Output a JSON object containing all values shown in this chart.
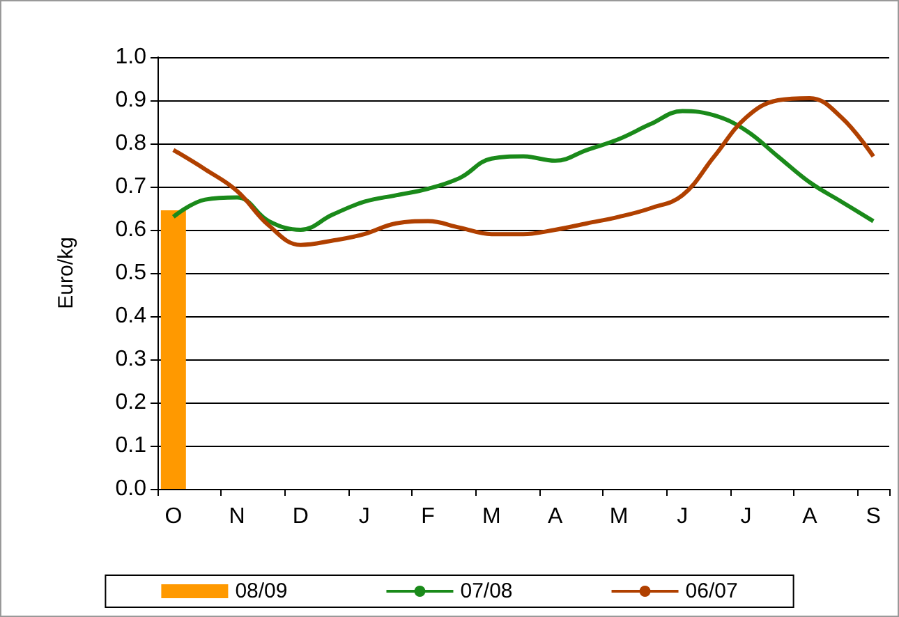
{
  "chart_data": {
    "type": "bar",
    "ylabel": "Euro/kg",
    "categories": [
      "O",
      null,
      "N",
      null,
      "D",
      null,
      "J",
      null,
      "F",
      null,
      "M",
      null,
      "A",
      null,
      "M",
      null,
      "J",
      null,
      "J",
      null,
      "A",
      null,
      "S"
    ],
    "series": [
      {
        "name": "08/09",
        "color": "#ff9900",
        "values": [
          0.645,
          null,
          null,
          null,
          null,
          null,
          null,
          null,
          null,
          null,
          null,
          null,
          null,
          null,
          null,
          null,
          null,
          null,
          null,
          null,
          null,
          null,
          null
        ]
      },
      {
        "name": "07/08",
        "type": "line",
        "color": "#1a8a1a",
        "values": [
          0.63,
          0.67,
          0.675,
          0.62,
          0.6,
          0.635,
          0.665,
          0.68,
          0.695,
          0.72,
          0.765,
          0.77,
          0.76,
          0.785,
          0.81,
          0.845,
          0.875,
          0.865,
          0.83,
          0.77,
          0.71,
          0.665,
          0.62
        ]
      },
      {
        "name": "06/07",
        "type": "line",
        "color": "#b04000",
        "values": [
          0.785,
          0.74,
          0.69,
          0.61,
          0.565,
          0.575,
          0.59,
          0.615,
          0.62,
          0.605,
          0.59,
          0.59,
          0.6,
          0.615,
          0.63,
          0.65,
          0.68,
          0.77,
          0.86,
          0.9,
          0.905,
          0.86,
          0.77
        ]
      }
    ],
    "ylim": [
      0,
      1
    ],
    "yticks": [
      {
        "value": 0,
        "label": "0.0"
      },
      {
        "value": 0.1,
        "label": "0.1"
      },
      {
        "value": 0.2,
        "label": "0.2"
      },
      {
        "value": 0.3,
        "label": "0.3"
      },
      {
        "value": 0.4,
        "label": "0.4"
      },
      {
        "value": 0.5,
        "label": "0.5"
      },
      {
        "value": 0.6,
        "label": "0.6"
      },
      {
        "value": 0.7,
        "label": "0.7"
      },
      {
        "value": 0.8,
        "label": "0.8"
      },
      {
        "value": 0.9,
        "label": "0.9"
      },
      {
        "value": 1,
        "label": "1.0"
      }
    ],
    "grid": "y",
    "legend": "bottom",
    "marker": "none",
    "line_style": "solid"
  }
}
